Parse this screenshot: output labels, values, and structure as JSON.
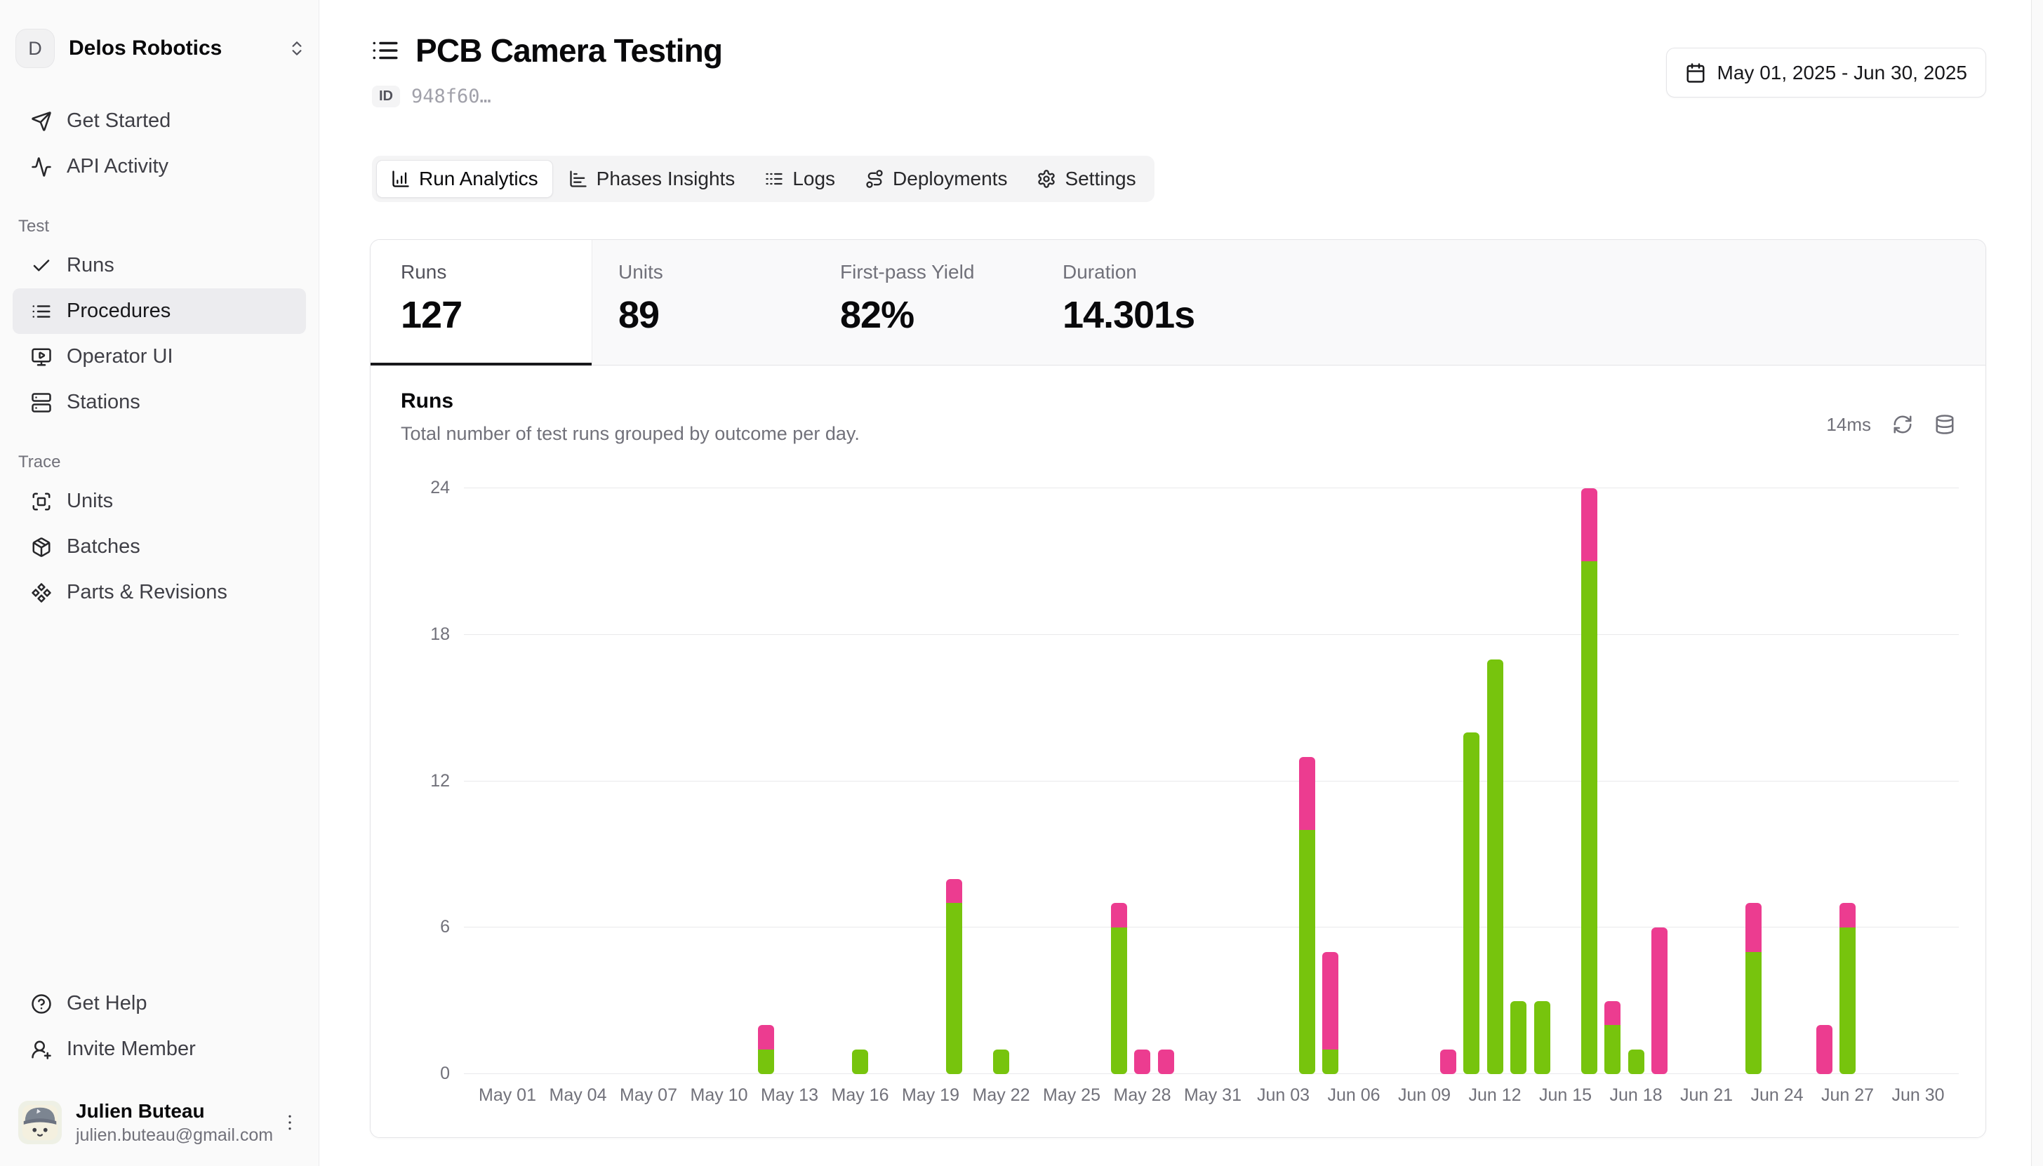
{
  "sidebar": {
    "org": {
      "initial": "D",
      "name": "Delos Robotics"
    },
    "nav_top": [
      {
        "label": "Get Started",
        "icon": "send"
      },
      {
        "label": "API Activity",
        "icon": "activity"
      }
    ],
    "sections": [
      {
        "label": "Test",
        "items": [
          {
            "label": "Runs",
            "icon": "check",
            "active": false
          },
          {
            "label": "Procedures",
            "icon": "list",
            "active": true
          },
          {
            "label": "Operator UI",
            "icon": "monitor-play",
            "active": false
          },
          {
            "label": "Stations",
            "icon": "server",
            "active": false
          }
        ]
      },
      {
        "label": "Trace",
        "items": [
          {
            "label": "Units",
            "icon": "scan",
            "active": false
          },
          {
            "label": "Batches",
            "icon": "package",
            "active": false
          },
          {
            "label": "Parts & Revisions",
            "icon": "component",
            "active": false
          }
        ]
      }
    ],
    "nav_bottom": [
      {
        "label": "Get Help",
        "icon": "circle-help"
      },
      {
        "label": "Invite Member",
        "icon": "user-plus"
      }
    ],
    "user": {
      "name": "Julien Buteau",
      "email": "julien.buteau@gmail.com"
    }
  },
  "header": {
    "title": "PCB Camera Testing",
    "id_label": "ID",
    "id_value": "948f60…",
    "date_range": "May 01, 2025 - Jun 30, 2025"
  },
  "tabs": [
    {
      "label": "Run Analytics",
      "icon": "chart-column",
      "active": true
    },
    {
      "label": "Phases Insights",
      "icon": "chart-bar",
      "active": false
    },
    {
      "label": "Logs",
      "icon": "logs",
      "active": false
    },
    {
      "label": "Deployments",
      "icon": "route",
      "active": false
    },
    {
      "label": "Settings",
      "icon": "settings",
      "active": false
    }
  ],
  "stats": [
    {
      "label": "Runs",
      "value": "127",
      "active": true
    },
    {
      "label": "Units",
      "value": "89",
      "active": false
    },
    {
      "label": "First-pass Yield",
      "value": "82%",
      "active": false
    },
    {
      "label": "Duration",
      "value": "14.301s",
      "active": false
    }
  ],
  "chart_header": {
    "title": "Runs",
    "subtitle": "Total number of test runs grouped by outcome per day.",
    "latency": "14ms"
  },
  "chart_data": {
    "type": "bar",
    "stacked": true,
    "title": "Runs",
    "xlabel": "",
    "ylabel": "",
    "ylim": [
      0,
      24
    ],
    "yticks": [
      0,
      6,
      12,
      18,
      24
    ],
    "grid": true,
    "legend": "none",
    "x_tick_labels": [
      "May 01",
      "May 04",
      "May 07",
      "May 10",
      "May 13",
      "May 16",
      "May 19",
      "May 22",
      "May 25",
      "May 28",
      "May 31",
      "Jun 03",
      "Jun 06",
      "Jun 09",
      "Jun 12",
      "Jun 15",
      "Jun 18",
      "Jun 21",
      "Jun 24",
      "Jun 27",
      "Jun 30"
    ],
    "x_tick_step_days": 3,
    "series": [
      {
        "name": "passed",
        "color": "#77c40d"
      },
      {
        "name": "failed",
        "color": "#ec3c90"
      }
    ],
    "bars": [
      {
        "date": "May 12",
        "day": 11,
        "passed": 1,
        "failed": 1
      },
      {
        "date": "May 16",
        "day": 15,
        "passed": 1,
        "failed": 0
      },
      {
        "date": "May 20",
        "day": 19,
        "passed": 7,
        "failed": 1
      },
      {
        "date": "May 22",
        "day": 21,
        "passed": 1,
        "failed": 0
      },
      {
        "date": "May 27",
        "day": 26,
        "passed": 6,
        "failed": 1
      },
      {
        "date": "May 28",
        "day": 27,
        "passed": 0,
        "failed": 1
      },
      {
        "date": "May 29",
        "day": 28,
        "passed": 0,
        "failed": 1
      },
      {
        "date": "Jun 04",
        "day": 34,
        "passed": 10,
        "failed": 3
      },
      {
        "date": "Jun 05",
        "day": 35,
        "passed": 1,
        "failed": 4
      },
      {
        "date": "Jun 10",
        "day": 40,
        "passed": 0,
        "failed": 1
      },
      {
        "date": "Jun 11",
        "day": 41,
        "passed": 14,
        "failed": 0
      },
      {
        "date": "Jun 12",
        "day": 42,
        "passed": 17,
        "failed": 0
      },
      {
        "date": "Jun 13",
        "day": 43,
        "passed": 3,
        "failed": 0
      },
      {
        "date": "Jun 14",
        "day": 44,
        "passed": 3,
        "failed": 0
      },
      {
        "date": "Jun 16",
        "day": 46,
        "passed": 21,
        "failed": 3
      },
      {
        "date": "Jun 17",
        "day": 47,
        "passed": 2,
        "failed": 1
      },
      {
        "date": "Jun 18",
        "day": 48,
        "passed": 1,
        "failed": 0
      },
      {
        "date": "Jun 19",
        "day": 49,
        "passed": 0,
        "failed": 6
      },
      {
        "date": "Jun 23",
        "day": 53,
        "passed": 5,
        "failed": 2
      },
      {
        "date": "Jun 26",
        "day": 56,
        "passed": 0,
        "failed": 2
      },
      {
        "date": "Jun 27",
        "day": 57,
        "passed": 6,
        "failed": 1
      }
    ]
  }
}
